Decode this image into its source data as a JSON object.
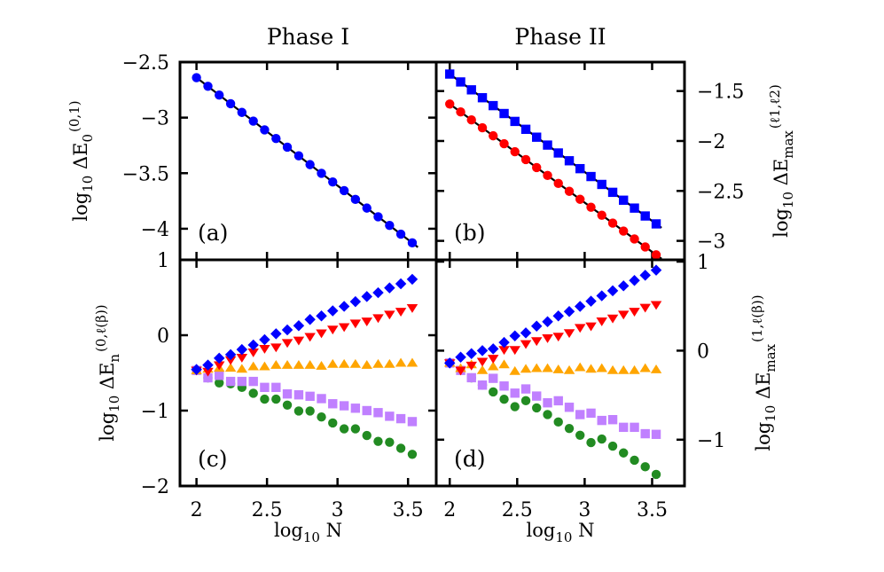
{
  "chart_data": [
    {
      "panel": "a",
      "type": "scatter",
      "title": "Phase I",
      "panel_label": "(a)",
      "ylabel": {
        "pre": "log",
        "sub1": "10",
        "mid": " ΔE",
        "sub2": "0",
        "sup": "(0,1)"
      },
      "yaxis_side": "left",
      "xlim": [
        1.883,
        3.7
      ],
      "ylim": [
        -4.28,
        -2.5
      ],
      "yticks": [
        -2.5,
        -3,
        -3.5,
        -4
      ],
      "ytick_labels": [
        "−2.5",
        "−3",
        "−3.5",
        "−4"
      ],
      "xticks": [
        2,
        2.5,
        3,
        3.5
      ],
      "fit_line": true,
      "x": [
        2.0,
        2.081,
        2.161,
        2.242,
        2.322,
        2.403,
        2.483,
        2.564,
        2.644,
        2.725,
        2.805,
        2.886,
        2.966,
        3.047,
        3.127,
        3.208,
        3.288,
        3.369,
        3.449,
        3.53
      ],
      "series": [
        {
          "marker": "circle",
          "color": "#0000ff",
          "values": [
            -2.64,
            -2.718,
            -2.797,
            -2.875,
            -2.953,
            -3.031,
            -3.11,
            -3.188,
            -3.266,
            -3.344,
            -3.423,
            -3.501,
            -3.579,
            -3.657,
            -3.736,
            -3.814,
            -3.892,
            -3.97,
            -4.049,
            -4.127
          ]
        }
      ]
    },
    {
      "panel": "b",
      "type": "scatter",
      "title": "Phase II",
      "panel_label": "(b)",
      "ylabel": {
        "pre": "log",
        "sub1": "10",
        "mid": " ΔE",
        "sub2": "max",
        "sup": "(ℓ1,ℓ2)"
      },
      "yaxis_side": "right",
      "xlim": [
        1.9,
        3.74
      ],
      "ylim": [
        -3.19,
        -1.21
      ],
      "yticks": [
        -1.5,
        -2,
        -2.5,
        -3
      ],
      "ytick_labels": [
        "−1.5",
        "−2",
        "−2.5",
        "−3"
      ],
      "xticks": [
        2,
        2.5,
        3,
        3.5
      ],
      "fit_line": true,
      "x": [
        2.0,
        2.081,
        2.161,
        2.242,
        2.322,
        2.403,
        2.483,
        2.564,
        2.644,
        2.725,
        2.805,
        2.886,
        2.966,
        3.047,
        3.127,
        3.208,
        3.288,
        3.369,
        3.449,
        3.53
      ],
      "series": [
        {
          "marker": "square",
          "color": "#0000ff",
          "values": [
            -1.33,
            -1.409,
            -1.488,
            -1.567,
            -1.646,
            -1.725,
            -1.804,
            -1.883,
            -1.962,
            -2.041,
            -2.12,
            -2.198,
            -2.277,
            -2.356,
            -2.435,
            -2.514,
            -2.593,
            -2.672,
            -2.751,
            -2.83
          ]
        },
        {
          "marker": "circle",
          "color": "#ff0000",
          "values": [
            -1.63,
            -1.709,
            -1.789,
            -1.868,
            -1.948,
            -2.027,
            -2.107,
            -2.186,
            -2.266,
            -2.345,
            -2.425,
            -2.504,
            -2.584,
            -2.663,
            -2.743,
            -2.822,
            -2.902,
            -2.981,
            -3.061,
            -3.14
          ]
        }
      ]
    },
    {
      "panel": "c",
      "type": "scatter",
      "panel_label": "(c)",
      "xlabel": {
        "pre": "log",
        "sub1": "10",
        "mid": " N"
      },
      "ylabel": {
        "pre": "log",
        "sub1": "10",
        "mid": " ΔE",
        "sub2": "n",
        "sup": "(0,ℓ(β))"
      },
      "yaxis_side": "left",
      "xlim": [
        1.883,
        3.7
      ],
      "ylim": [
        -2.0,
        1.0
      ],
      "yticks": [
        1,
        0,
        -1,
        -2
      ],
      "ytick_labels": [
        "1",
        "0",
        "−1",
        "−2"
      ],
      "xticks": [
        2,
        2.5,
        3,
        3.5
      ],
      "xtick_labels": [
        "2",
        "2.5",
        "3",
        "3.5"
      ],
      "x": [
        2.0,
        2.081,
        2.161,
        2.242,
        2.322,
        2.403,
        2.483,
        2.564,
        2.644,
        2.725,
        2.805,
        2.886,
        2.966,
        3.047,
        3.127,
        3.208,
        3.288,
        3.369,
        3.449,
        3.53
      ],
      "series": [
        {
          "marker": "diamond",
          "color": "#0000ff",
          "values": [
            -0.455,
            -0.396,
            -0.305,
            -0.257,
            -0.19,
            -0.13,
            -0.059,
            0.019,
            0.071,
            0.126,
            0.209,
            0.256,
            0.324,
            0.383,
            0.446,
            0.513,
            0.564,
            0.628,
            0.682,
            0.742
          ]
        },
        {
          "marker": "triangle-down",
          "color": "#ff0000",
          "values": [
            -0.467,
            -0.481,
            -0.396,
            -0.328,
            -0.296,
            -0.225,
            -0.178,
            -0.159,
            -0.1,
            -0.068,
            -0.02,
            0.027,
            0.078,
            0.11,
            0.158,
            0.185,
            0.229,
            0.276,
            0.315,
            0.363
          ]
        },
        {
          "marker": "triangle-up",
          "color": "#ffa500",
          "values": [
            -0.467,
            -0.448,
            -0.435,
            -0.435,
            -0.448,
            -0.416,
            -0.416,
            -0.396,
            -0.396,
            -0.396,
            -0.396,
            -0.408,
            -0.384,
            -0.384,
            -0.384,
            -0.396,
            -0.384,
            -0.384,
            -0.368,
            -0.368
          ]
        },
        {
          "marker": "square",
          "color": "#c080ff",
          "values": [
            -0.467,
            -0.565,
            -0.533,
            -0.613,
            -0.613,
            -0.613,
            -0.692,
            -0.692,
            -0.779,
            -0.791,
            -0.81,
            -0.841,
            -0.909,
            -0.936,
            -0.968,
            -1.0,
            -1.027,
            -1.075,
            -1.107,
            -1.146
          ]
        },
        {
          "marker": "circle",
          "color": "#228b22",
          "values": [
            -0.467,
            -0.565,
            -0.633,
            -0.645,
            -0.692,
            -0.77,
            -0.848,
            -0.848,
            -0.927,
            -1.005,
            -1.005,
            -1.085,
            -1.164,
            -1.242,
            -1.242,
            -1.33,
            -1.408,
            -1.42,
            -1.499,
            -1.58
          ]
        }
      ]
    },
    {
      "panel": "d",
      "type": "scatter",
      "panel_label": "(d)",
      "xlabel": {
        "pre": "log",
        "sub1": "10",
        "mid": " N"
      },
      "ylabel": {
        "pre": "log",
        "sub1": "10",
        "mid": " ΔE",
        "sub2": "max",
        "sup": "(1,ℓ(β))"
      },
      "yaxis_side": "right",
      "xlim": [
        1.9,
        3.74
      ],
      "ylim": [
        -1.52,
        1.02
      ],
      "yticks": [
        1,
        0,
        -1
      ],
      "ytick_labels": [
        "1",
        "0",
        "−1"
      ],
      "xticks": [
        2,
        2.5,
        3,
        3.5
      ],
      "xtick_labels": [
        "2",
        "2.5",
        "3",
        "3.5"
      ],
      "x": [
        2.0,
        2.081,
        2.161,
        2.242,
        2.322,
        2.403,
        2.483,
        2.564,
        2.644,
        2.725,
        2.805,
        2.886,
        2.966,
        3.047,
        3.127,
        3.208,
        3.288,
        3.369,
        3.449,
        3.53
      ],
      "series": [
        {
          "marker": "diamond",
          "color": "#0000ff",
          "values": [
            -0.139,
            -0.073,
            -0.033,
            0.0,
            0.02,
            0.092,
            0.166,
            0.199,
            0.275,
            0.325,
            0.39,
            0.44,
            0.497,
            0.556,
            0.616,
            0.673,
            0.728,
            0.788,
            0.847,
            0.904
          ]
        },
        {
          "marker": "triangle-down",
          "color": "#ff0000",
          "values": [
            -0.139,
            -0.222,
            -0.166,
            -0.122,
            -0.089,
            0.01,
            0.01,
            0.076,
            0.109,
            0.142,
            0.159,
            0.199,
            0.258,
            0.275,
            0.331,
            0.364,
            0.407,
            0.44,
            0.484,
            0.516
          ]
        },
        {
          "marker": "triangle-up",
          "color": "#ffa500",
          "values": [
            -0.139,
            -0.199,
            -0.156,
            -0.221,
            -0.179,
            -0.156,
            -0.231,
            -0.206,
            -0.199,
            -0.199,
            -0.212,
            -0.221,
            -0.189,
            -0.206,
            -0.199,
            -0.221,
            -0.221,
            -0.221,
            -0.199,
            -0.212
          ]
        },
        {
          "marker": "square",
          "color": "#c080ff",
          "values": [
            -0.139,
            -0.222,
            -0.304,
            -0.387,
            -0.311,
            -0.397,
            -0.477,
            -0.43,
            -0.51,
            -0.586,
            -0.563,
            -0.636,
            -0.718,
            -0.702,
            -0.784,
            -0.775,
            -0.861,
            -0.861,
            -0.933,
            -0.94
          ]
        },
        {
          "marker": "circle",
          "color": "#228b22",
          "values": [
            -0.139,
            -0.222,
            -0.305,
            -0.387,
            -0.464,
            -0.546,
            -0.629,
            -0.562,
            -0.643,
            -0.718,
            -0.801,
            -0.874,
            -0.95,
            -1.033,
            -0.993,
            -1.072,
            -1.149,
            -1.231,
            -1.304,
            -1.39
          ]
        }
      ]
    }
  ]
}
